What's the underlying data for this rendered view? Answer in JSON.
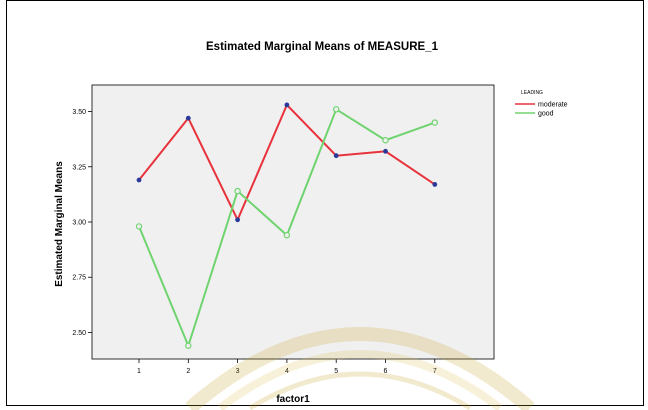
{
  "chart_data": {
    "type": "line",
    "title": "Estimated Marginal Means of MEASURE_1",
    "xlabel": "factor1",
    "ylabel": "Estimated Marginal Means",
    "categories": [
      "1",
      "2",
      "3",
      "4",
      "5",
      "6",
      "7"
    ],
    "y_ticks": [
      "2.50",
      "2.75",
      "3.00",
      "3.25",
      "3.50"
    ],
    "ylim": [
      2.38,
      3.62
    ],
    "grid": false,
    "legend_title": "LEADING",
    "legend_position": "top-right",
    "plot_background": "#f0f0f0",
    "series": [
      {
        "name": "moderate",
        "color": "#e8323c",
        "marker_color": "#2a3a9a",
        "marker": "filled-circle",
        "values": [
          3.19,
          3.47,
          3.01,
          3.53,
          3.3,
          3.32,
          3.17
        ]
      },
      {
        "name": "good",
        "color": "#6fd46f",
        "marker_color": "#6fd46f",
        "marker": "open-circle",
        "values": [
          2.98,
          2.44,
          3.14,
          2.94,
          3.51,
          3.37,
          3.45
        ]
      }
    ]
  }
}
